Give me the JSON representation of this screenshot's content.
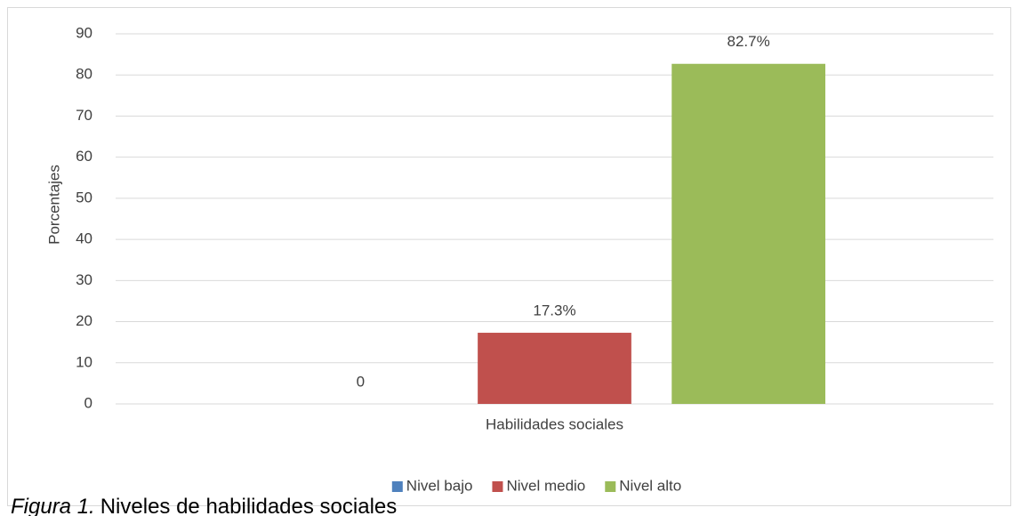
{
  "chart_data": {
    "type": "bar",
    "ylabel": "Porcentajes",
    "categories": [
      "Habilidades sociales"
    ],
    "series": [
      {
        "name": "Nivel bajo",
        "color": "#4f81bd",
        "values": [
          0
        ],
        "value_labels": [
          "0"
        ]
      },
      {
        "name": "Nivel medio",
        "color": "#c0504d",
        "values": [
          17.3
        ],
        "value_labels": [
          "17.3%"
        ]
      },
      {
        "name": "Nivel alto",
        "color": "#9bbb59",
        "values": [
          82.7
        ],
        "value_labels": [
          "82.7%"
        ]
      }
    ],
    "ylim": [
      0,
      90
    ],
    "yticks": [
      0,
      10,
      20,
      30,
      40,
      50,
      60,
      70,
      80,
      90
    ],
    "grid": true,
    "legend": "bottom"
  },
  "caption": {
    "label": "Figura 1.",
    "text": "Niveles de habilidades sociales"
  }
}
